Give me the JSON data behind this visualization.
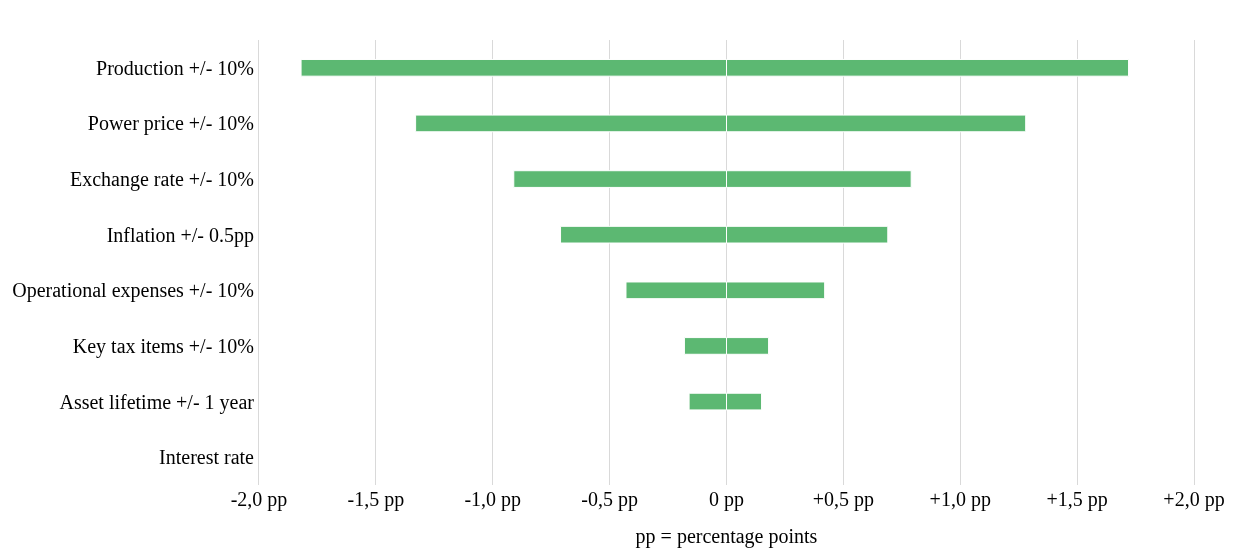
{
  "chart_data": {
    "type": "bar",
    "orientation": "horizontal",
    "stacked": true,
    "categories": [
      "Production +/- 10%",
      "Power price +/- 10%",
      "Exchange rate +/- 10%",
      "Inflation +/- 0.5pp",
      "Operational expenses +/- 10%",
      "Key tax items +/- 10%",
      "Asset lifetime +/- 1 year",
      "Interest rate"
    ],
    "series": [
      {
        "color": "#5cb872",
        "values": [
          -1.82,
          -1.33,
          -0.91,
          -0.71,
          -0.43,
          -0.18,
          -0.16,
          null
        ]
      },
      {
        "color": "#5cb872",
        "values": [
          1.72,
          1.28,
          0.79,
          0.69,
          0.42,
          0.18,
          0.15,
          null
        ]
      }
    ],
    "xlabel": "pp = percentage points",
    "xlim": [
      -2.0,
      2.0
    ],
    "xticks": [
      {
        "value": -2.0,
        "label": "-2,0 pp"
      },
      {
        "value": -1.5,
        "label": "-1,5 pp"
      },
      {
        "value": -1.0,
        "label": "-1,0 pp"
      },
      {
        "value": -0.5,
        "label": "-0,5 pp"
      },
      {
        "value": 0,
        "label": "0 pp"
      },
      {
        "value": 0.5,
        "label": "+0,5 pp"
      },
      {
        "value": 1.0,
        "label": "+1,0 pp"
      },
      {
        "value": 1.5,
        "label": "+1,5 pp"
      },
      {
        "value": 2.0,
        "label": "+2,0 pp"
      }
    ],
    "grid": "x"
  }
}
